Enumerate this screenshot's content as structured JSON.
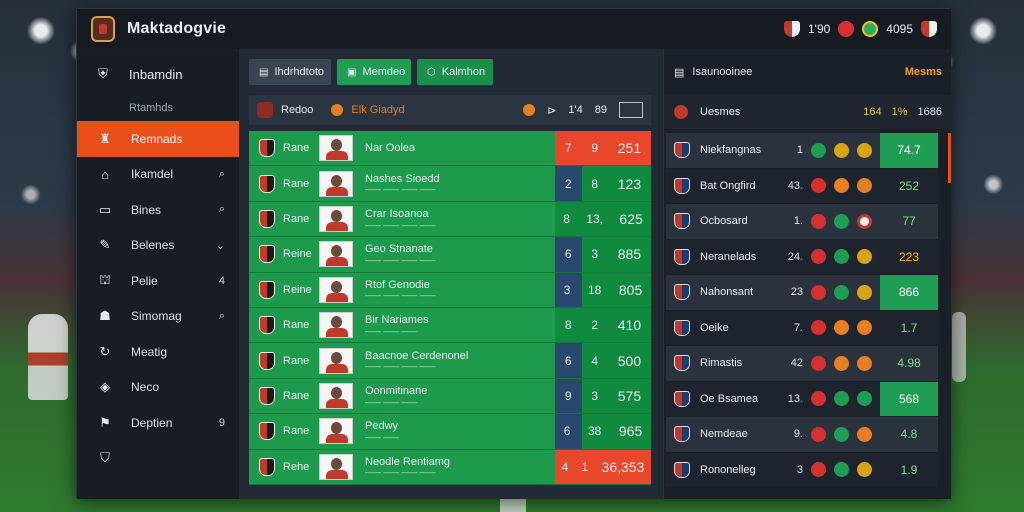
{
  "app": {
    "title": "Maktadogvie",
    "top_right": {
      "value1": "1'90",
      "value2": "4095"
    }
  },
  "sidebar": {
    "header": "Inbamdin",
    "subheader": "Rtamhds",
    "items": [
      {
        "label": "Remnads",
        "icon": "team-icon",
        "tail": ""
      },
      {
        "label": "Ikamdel",
        "icon": "home-icon",
        "tail": "⌕"
      },
      {
        "label": "Bines",
        "icon": "list-icon",
        "tail": "⌕"
      },
      {
        "label": "Belenes",
        "icon": "pin-icon",
        "tail": "⌄"
      },
      {
        "label": "Pelie",
        "icon": "lock-icon",
        "tail": "4"
      },
      {
        "label": "Simomag",
        "icon": "user-icon",
        "tail": "⌕"
      },
      {
        "label": "Meatig",
        "icon": "refresh-icon",
        "tail": ""
      },
      {
        "label": "Neco",
        "icon": "ball-icon",
        "tail": ""
      },
      {
        "label": "Deptien",
        "icon": "flag-icon",
        "tail": "9"
      },
      {
        "label": "",
        "icon": "shield-icon",
        "tail": ""
      }
    ]
  },
  "main": {
    "tabs": [
      "Ihdrhdtoto",
      "Memdeo",
      "Kalmhon"
    ],
    "header": {
      "left": "Redoo",
      "team": "Elk Giadyd",
      "cols": [
        "1'4",
        "89"
      ]
    },
    "rows": [
      {
        "short": "Rane",
        "name": "Nar Oolea",
        "sub": "",
        "a": "7",
        "b": "9",
        "score": "251",
        "style": "hot"
      },
      {
        "short": "Rane",
        "name": "Nashes Sioedd",
        "sub": "—— —— —— ——",
        "a": "2",
        "b": "8",
        "score": "123",
        "style": "dark"
      },
      {
        "short": "Rane",
        "name": "Crar Isoanoa",
        "sub": "—— —— —— ——",
        "a": "8",
        "b": "13,",
        "score": "625",
        "style": ""
      },
      {
        "short": "Reine",
        "name": "Geo Stnanate",
        "sub": "—— —— —— ——",
        "a": "6",
        "b": "3",
        "score": "885",
        "style": "dark"
      },
      {
        "short": "Reine",
        "name": "Rtof Genodie",
        "sub": "—— —— —— ——",
        "a": "3",
        "b": "18",
        "score": "805",
        "style": "dark"
      },
      {
        "short": "Rane",
        "name": "Bir Nariames",
        "sub": "—— —— ——",
        "a": "8",
        "b": "2",
        "score": "410",
        "style": ""
      },
      {
        "short": "Rane",
        "name": "Baacnoe Cerdenonel",
        "sub": "—— —— —— ——",
        "a": "6",
        "b": "4",
        "score": "500",
        "style": "dark"
      },
      {
        "short": "Rane",
        "name": "Oonmitinane",
        "sub": "—— —— ——",
        "a": "9",
        "b": "3",
        "score": "575",
        "style": "dark"
      },
      {
        "short": "Rane",
        "name": "Pedwy",
        "sub": "—— ——",
        "a": "6",
        "b": "38",
        "score": "965",
        "style": "dark"
      },
      {
        "short": "Rehe",
        "name": "Neodle Rentiamg",
        "sub": "—— —— —— ——",
        "a": "4",
        "b": "1",
        "score": "36,353",
        "style": "hot"
      }
    ]
  },
  "standings": {
    "title": "Isaunooinee",
    "right_label": "Mesms",
    "header": {
      "name": "Uesmes",
      "v1": "164",
      "v2": "1%",
      "v3": "1686"
    },
    "rows": [
      {
        "name": "Niekfangnas",
        "pts": "1",
        "form": [
          "g",
          "y",
          "y"
        ],
        "gd": "74.7",
        "gdstyle": "green"
      },
      {
        "name": "Bat Ongfird",
        "pts": "43.",
        "form": [
          "r",
          "o",
          "o"
        ],
        "gd": "252",
        "gdstyle": "plain"
      },
      {
        "name": "Ocbosard",
        "pts": "1.",
        "form": [
          "r",
          "g",
          "w"
        ],
        "gd": "77",
        "gdstyle": "plain"
      },
      {
        "name": "Neranelads",
        "pts": "24.",
        "form": [
          "r",
          "g",
          "y"
        ],
        "gd": "223",
        "gdstyle": ""
      },
      {
        "name": "Nahonsant",
        "pts": "23",
        "form": [
          "r",
          "g",
          "y"
        ],
        "gd": "866",
        "gdstyle": "green"
      },
      {
        "name": "Oeike",
        "pts": "7.",
        "form": [
          "r",
          "o",
          "o"
        ],
        "gd": "1.7",
        "gdstyle": "plain"
      },
      {
        "name": "Rimastis",
        "pts": "42",
        "form": [
          "r",
          "o",
          "o"
        ],
        "gd": "4.98",
        "gdstyle": "plain"
      },
      {
        "name": "Oe Bsamea",
        "pts": "13.",
        "form": [
          "r",
          "g",
          "g"
        ],
        "gd": "568",
        "gdstyle": "green"
      },
      {
        "name": "Nemdeae",
        "pts": "9.",
        "form": [
          "r",
          "g",
          "o"
        ],
        "gd": "4.8",
        "gdstyle": "plain"
      },
      {
        "name": "Rononelleg",
        "pts": "3",
        "form": [
          "r",
          "g",
          "y"
        ],
        "gd": "1.9",
        "gdstyle": "plain"
      }
    ]
  }
}
